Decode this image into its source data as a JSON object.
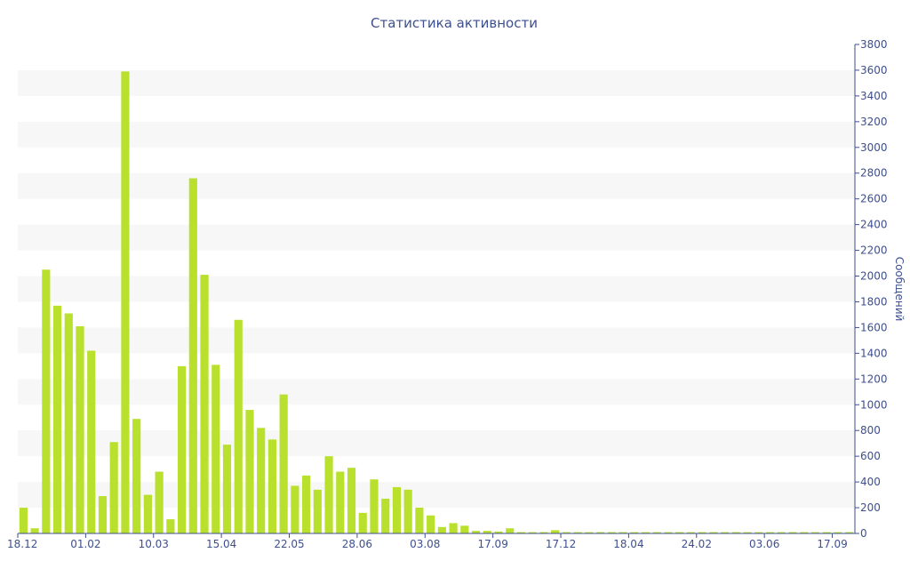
{
  "chart_data": {
    "type": "bar",
    "title": "Статистика активности",
    "xlabel": "",
    "ylabel": "Сообщений",
    "ylim": [
      0,
      3800
    ],
    "ytick_step": 200,
    "grid": "alternating horizontal bands",
    "y_axis_side": "right",
    "bar_color": "#b8e02c",
    "xtick_labels": [
      "18.12",
      "01.02",
      "10.03",
      "15.04",
      "22.05",
      "28.06",
      "03.08",
      "17.09",
      "17.12",
      "18.04",
      "24.02",
      "03.06",
      "17.09"
    ],
    "xtick_positions": [
      0,
      6,
      12,
      18,
      24,
      30,
      36,
      42,
      48,
      54,
      60,
      66,
      72
    ],
    "values": [
      200,
      40,
      2050,
      1770,
      1710,
      1610,
      1420,
      290,
      710,
      3590,
      890,
      300,
      480,
      110,
      1300,
      2760,
      2010,
      1310,
      690,
      1660,
      960,
      820,
      730,
      1080,
      370,
      450,
      340,
      600,
      480,
      510,
      160,
      420,
      270,
      360,
      340,
      200,
      140,
      50,
      80,
      60,
      20,
      20,
      15,
      40,
      10,
      10,
      10,
      25,
      10,
      10,
      10,
      10,
      10,
      10,
      10,
      10,
      10,
      10,
      10,
      10,
      10,
      10,
      10,
      10,
      10,
      10,
      10,
      10,
      10,
      10,
      10,
      10,
      10,
      10
    ]
  }
}
